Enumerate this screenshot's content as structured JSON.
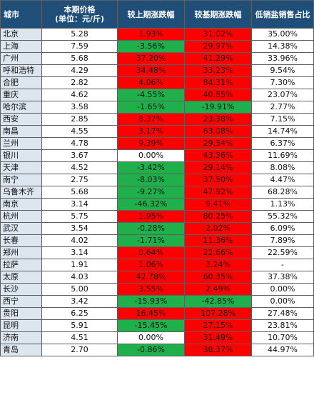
{
  "headers": {
    "city": "城市",
    "price_line1": "本期价格",
    "price_line2": "(单位：元/斤)",
    "mom": "较上期涨跌幅",
    "yoy": "较基期涨跌幅",
    "share": "低销盐销售占比"
  },
  "colors": {
    "header_bg": "#1f4e79",
    "city_bg": "#dce6f1",
    "up": "#ff0000",
    "down": "#20b04b"
  },
  "rows": [
    {
      "city": "北京",
      "price": "5.28",
      "mom": "1.93%",
      "mom_dir": "pos",
      "yoy": "31.02%",
      "yoy_dir": "pos",
      "share": "35.00%"
    },
    {
      "city": "上海",
      "price": "7.59",
      "mom": "-3.56%",
      "mom_dir": "neg",
      "yoy": "29.97%",
      "yoy_dir": "pos",
      "share": "14.38%"
    },
    {
      "city": "广州",
      "price": "5.68",
      "mom": "37.20%",
      "mom_dir": "pos",
      "yoy": "41.29%",
      "yoy_dir": "pos",
      "share": "33.96%"
    },
    {
      "city": "呼和浩特",
      "price": "4.29",
      "mom": "34.48%",
      "mom_dir": "pos",
      "yoy": "33.23%",
      "yoy_dir": "pos",
      "share": "9.54%"
    },
    {
      "city": "合肥",
      "price": "2.82",
      "mom": "4.06%",
      "mom_dir": "pos",
      "yoy": "84.31%",
      "yoy_dir": "pos",
      "share": "7.30%"
    },
    {
      "city": "重庆",
      "price": "4.62",
      "mom": "-4.55%",
      "mom_dir": "neg",
      "yoy": "40.85%",
      "yoy_dir": "pos",
      "share": "23.07%"
    },
    {
      "city": "哈尔滨",
      "price": "3.58",
      "mom": "-1.65%",
      "mom_dir": "neg",
      "yoy": "-19.91%",
      "yoy_dir": "neg",
      "share": "2.77%"
    },
    {
      "city": "西安",
      "price": "2.85",
      "mom": "8.37%",
      "mom_dir": "pos",
      "yoy": "23.38%",
      "yoy_dir": "pos",
      "share": "7.15%"
    },
    {
      "city": "南昌",
      "price": "4.55",
      "mom": "3.17%",
      "mom_dir": "pos",
      "yoy": "63.08%",
      "yoy_dir": "pos",
      "share": "14.74%"
    },
    {
      "city": "兰州",
      "price": "4.78",
      "mom": "9.39%",
      "mom_dir": "pos",
      "yoy": "29.54%",
      "yoy_dir": "pos",
      "share": "6.37%"
    },
    {
      "city": "银川",
      "price": "3.67",
      "mom": "0.00%",
      "mom_dir": "zero",
      "yoy": "43.36%",
      "yoy_dir": "pos",
      "share": "11.69%"
    },
    {
      "city": "天津",
      "price": "4.52",
      "mom": "-3.42%",
      "mom_dir": "neg",
      "yoy": "29.14%",
      "yoy_dir": "pos",
      "share": "8.08%"
    },
    {
      "city": "南宁",
      "price": "2.75",
      "mom": "-8.03%",
      "mom_dir": "neg",
      "yoy": "37.50%",
      "yoy_dir": "pos",
      "share": "4.47%"
    },
    {
      "city": "乌鲁木齐",
      "price": "5.68",
      "mom": "-9.27%",
      "mom_dir": "neg",
      "yoy": "47.92%",
      "yoy_dir": "pos",
      "share": "68.28%"
    },
    {
      "city": "南京",
      "price": "3.14",
      "mom": "-46.32%",
      "mom_dir": "neg",
      "yoy": "9.41%",
      "yoy_dir": "pos",
      "share": "1.13%"
    },
    {
      "city": "杭州",
      "price": "5.75",
      "mom": "1.95%",
      "mom_dir": "pos",
      "yoy": "80.25%",
      "yoy_dir": "pos",
      "share": "55.32%"
    },
    {
      "city": "武汉",
      "price": "3.54",
      "mom": "-0.28%",
      "mom_dir": "neg",
      "yoy": "2.02%",
      "yoy_dir": "pos",
      "share": "6.09%"
    },
    {
      "city": "长春",
      "price": "4.02",
      "mom": "-1.71%",
      "mom_dir": "neg",
      "yoy": "11.36%",
      "yoy_dir": "pos",
      "share": "7.89%"
    },
    {
      "city": "郑州",
      "price": "3.14",
      "mom": "0.64%",
      "mom_dir": "pos",
      "yoy": "22.66%",
      "yoy_dir": "pos",
      "share": "22.59%"
    },
    {
      "city": "拉萨",
      "price": "1.91",
      "mom": "1.06%",
      "mom_dir": "pos",
      "yoy": "3.24%",
      "yoy_dir": "pos",
      "share": "-"
    },
    {
      "city": "太原",
      "price": "4.03",
      "mom": "42.78%",
      "mom_dir": "pos",
      "yoy": "60.35%",
      "yoy_dir": "pos",
      "share": "37.38%"
    },
    {
      "city": "长沙",
      "price": "5.00",
      "mom": "3.55%",
      "mom_dir": "pos",
      "yoy": "2.49%",
      "yoy_dir": "pos",
      "share": "0.00%"
    },
    {
      "city": "西宁",
      "price": "3.42",
      "mom": "-15.93%",
      "mom_dir": "neg",
      "yoy": "-42.85%",
      "yoy_dir": "neg",
      "share": "0.00%"
    },
    {
      "city": "贵阳",
      "price": "6.25",
      "mom": "16.45%",
      "mom_dir": "pos",
      "yoy": "107.28%",
      "yoy_dir": "pos",
      "share": "27.48%"
    },
    {
      "city": "昆明",
      "price": "5.91",
      "mom": "-15.45%",
      "mom_dir": "neg",
      "yoy": "27.15%",
      "yoy_dir": "pos",
      "share": "23.81%"
    },
    {
      "city": "济南",
      "price": "4.51",
      "mom": "0.00%",
      "mom_dir": "zero",
      "yoy": "31.49%",
      "yoy_dir": "pos",
      "share": "10.70%"
    },
    {
      "city": "青岛",
      "price": "2.70",
      "mom": "-0.86%",
      "mom_dir": "neg",
      "yoy": "38.37%",
      "yoy_dir": "pos",
      "share": "44.97%"
    }
  ]
}
